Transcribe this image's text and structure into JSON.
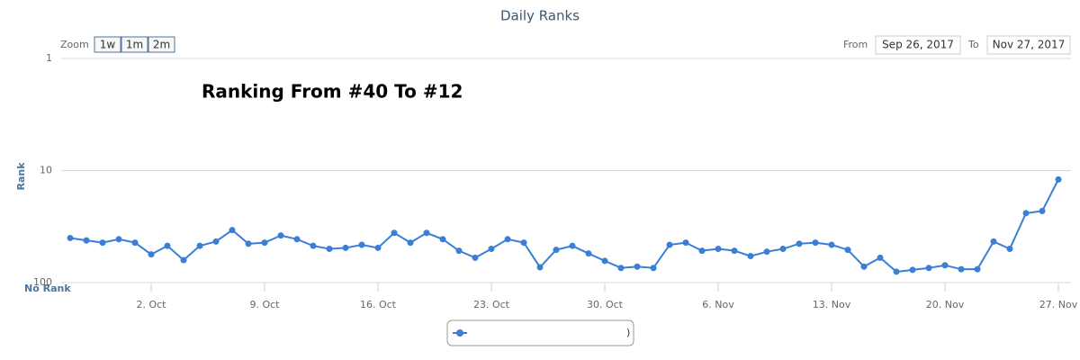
{
  "chart_data": {
    "type": "line",
    "title": "Daily Ranks",
    "annotation": "Ranking From #40 To #12",
    "y_label": "Rank",
    "no_rank_label": "No Rank",
    "zoom_label": "Zoom",
    "zoom_buttons": [
      "1w",
      "1m",
      "2m"
    ],
    "from_label": "From",
    "from_date": "Sep 26, 2017",
    "to_label": "To",
    "to_date": "Nov 27, 2017",
    "log_scale": true,
    "reversed": true,
    "grid": true,
    "ylim": [
      1,
      100
    ],
    "yticks": [
      1,
      10,
      100
    ],
    "categories": [
      null,
      null,
      null,
      null,
      null,
      "2. Oct",
      null,
      null,
      null,
      null,
      null,
      null,
      "9. Oct",
      null,
      null,
      null,
      null,
      null,
      null,
      "16. Oct",
      null,
      null,
      null,
      null,
      null,
      null,
      "23. Oct",
      null,
      null,
      null,
      null,
      null,
      null,
      "30. Oct",
      null,
      null,
      null,
      null,
      null,
      null,
      "6. Nov",
      null,
      null,
      null,
      null,
      null,
      null,
      "13. Nov",
      null,
      null,
      null,
      null,
      null,
      null,
      "20. Nov",
      null,
      null,
      null,
      null,
      null,
      null,
      "27. Nov"
    ],
    "series": [
      {
        "color": "#3a7fd5",
        "values": [
          40,
          42,
          44,
          41,
          44,
          56,
          47,
          63,
          47,
          43,
          34,
          45,
          44,
          38,
          41,
          47,
          50,
          49,
          46,
          49,
          36,
          44,
          36,
          41,
          52,
          60,
          50,
          41,
          44,
          73,
          51,
          47,
          55,
          64,
          74,
          72,
          74,
          46,
          44,
          52,
          50,
          52,
          58,
          53,
          50,
          45,
          44,
          46,
          51,
          72,
          60,
          80,
          77,
          74,
          70,
          76,
          76,
          43,
          50,
          24,
          23,
          12
        ]
      }
    ]
  }
}
